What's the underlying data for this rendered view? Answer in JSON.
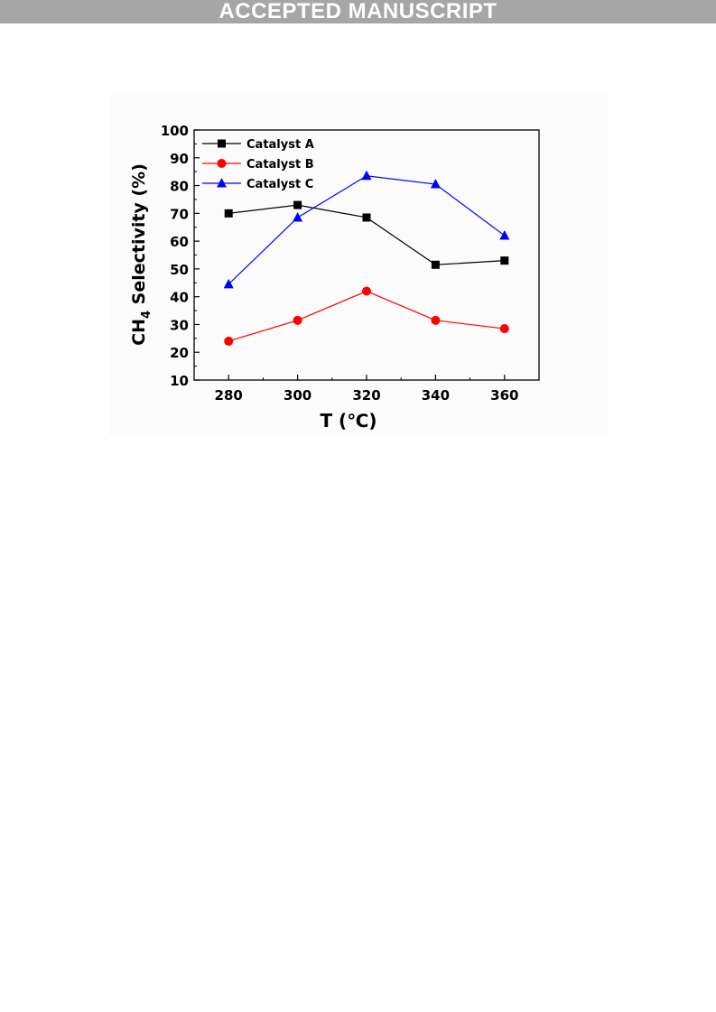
{
  "banner": {
    "text": "ACCEPTED MANUSCRIPT"
  },
  "chart_data": {
    "type": "line",
    "title": "",
    "xlabel": "T (℃)",
    "ylabel": {
      "main": "CH",
      "subscript": "4",
      "suffix": " Selectivity (%)"
    },
    "x": [
      280,
      300,
      320,
      340,
      360
    ],
    "xlim": [
      270,
      370
    ],
    "ylim": [
      10,
      100
    ],
    "xticks": [
      "280",
      "300",
      "320",
      "340",
      "360"
    ],
    "yticks": [
      "10",
      "20",
      "30",
      "40",
      "50",
      "60",
      "70",
      "80",
      "90",
      "100"
    ],
    "grid": false,
    "legend": "top-left",
    "series": [
      {
        "name": "Catalyst A",
        "color": "#000000",
        "marker": "square",
        "values": [
          70,
          73,
          68.5,
          51.5,
          53
        ]
      },
      {
        "name": "Catalyst B",
        "color": "#ff0000",
        "marker": "circle",
        "values": [
          24,
          31.5,
          42,
          31.5,
          28.5
        ]
      },
      {
        "name": "Catalyst C",
        "color": "#0000ff",
        "marker": "triangle",
        "values": [
          44.5,
          68.5,
          83.5,
          80.5,
          62
        ]
      }
    ]
  }
}
